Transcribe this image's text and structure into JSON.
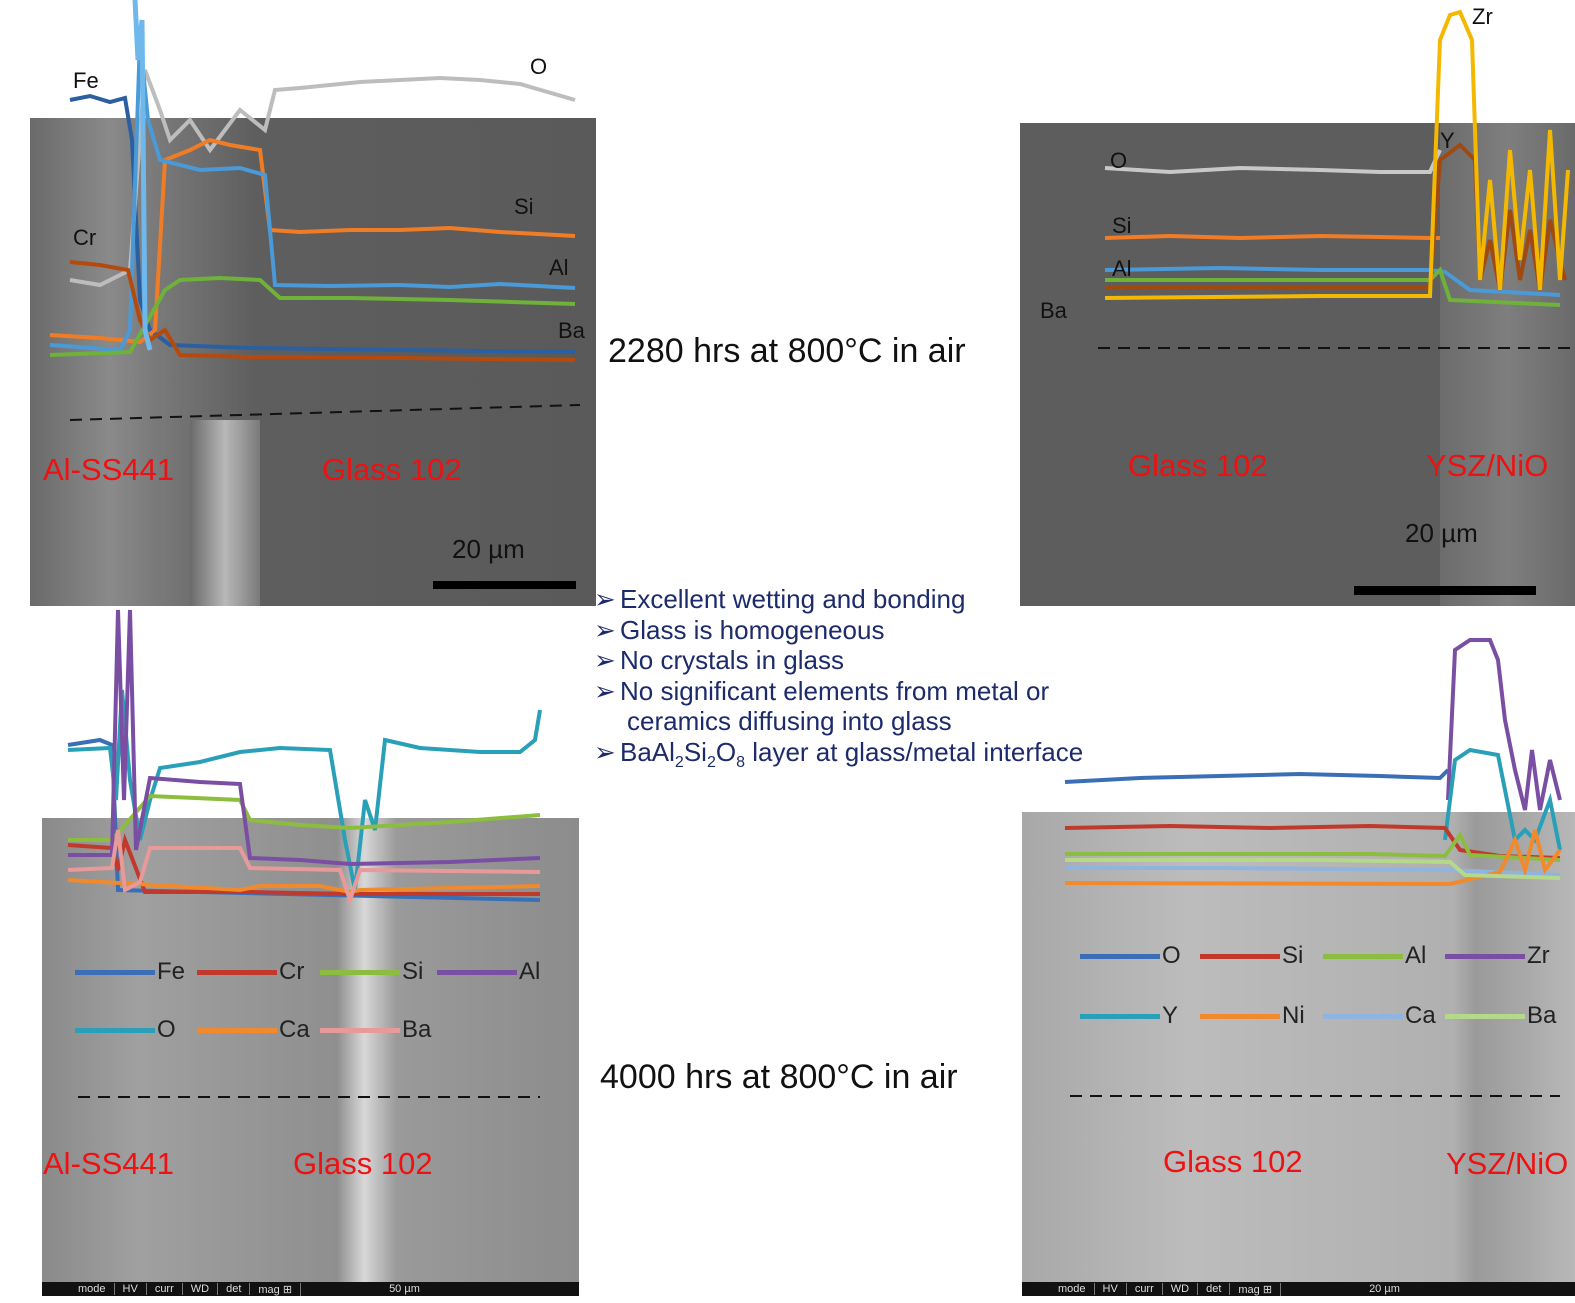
{
  "panels": {
    "top_left": {
      "region_left": "Al-SS441",
      "region_right": "Glass 102",
      "scale": "20 µm",
      "elements": {
        "fe": "Fe",
        "o": "O",
        "cr": "Cr",
        "si": "Si",
        "al": "Al",
        "ba": "Ba"
      }
    },
    "top_right": {
      "region_left": "Glass 102",
      "region_right": "YSZ/NiO",
      "scale": "20 µm",
      "elements": {
        "zr": "Zr",
        "y": "Y",
        "o": "O",
        "si": "Si",
        "al": "Al",
        "ba": "Ba"
      }
    },
    "bottom_left": {
      "region_left": "Al-SS441",
      "region_right": "Glass 102",
      "legend": [
        {
          "label": "Fe",
          "color": "#3a6fb5"
        },
        {
          "label": "Cr",
          "color": "#c0392b"
        },
        {
          "label": "Si",
          "color": "#8cbd3f"
        },
        {
          "label": "Al",
          "color": "#7a4fa3"
        },
        {
          "label": "O",
          "color": "#2aa0b8"
        },
        {
          "label": "Ca",
          "color": "#f08a2c"
        },
        {
          "label": "Ba",
          "color": "#e89a9a"
        }
      ],
      "sem_bar": [
        "mode",
        "HV",
        "curr",
        "WD",
        "det",
        "mag ⊞",
        "50 µm"
      ]
    },
    "bottom_right": {
      "region_left": "Glass 102",
      "region_right": "YSZ/NiO",
      "legend": [
        {
          "label": "O",
          "color": "#3a6fb5"
        },
        {
          "label": "Si",
          "color": "#c0392b"
        },
        {
          "label": "Al",
          "color": "#8cbd3f"
        },
        {
          "label": "Zr",
          "color": "#7a4fa3"
        },
        {
          "label": "Y",
          "color": "#2aa0b8"
        },
        {
          "label": "Ni",
          "color": "#f08a2c"
        },
        {
          "label": "Ca",
          "color": "#8fb4e0"
        },
        {
          "label": "Ba",
          "color": "#b5d98a"
        }
      ],
      "sem_bar": [
        "mode",
        "HV",
        "curr",
        "WD",
        "det",
        "mag ⊞",
        "20 µm"
      ]
    }
  },
  "captions": {
    "top": "2280 hrs at 800°C in air",
    "bottom": "4000 hrs at 800°C in air"
  },
  "bullets": [
    "Excellent wetting and bonding",
    "Glass is homogeneous",
    "No crystals in glass",
    "No significant elements from metal or",
    "ceramics diffusing into glass"
  ],
  "bullet_last": {
    "pre": "BaAl",
    "s1": "2",
    "mid1": "Si",
    "s2": "2",
    "mid2": "O",
    "s3": "8",
    "post": " layer at glass/metal interface"
  }
}
